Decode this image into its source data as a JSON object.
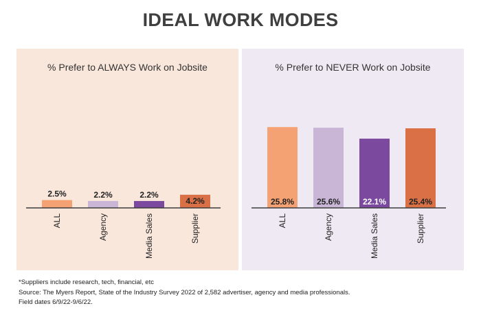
{
  "title": "IDEAL WORK MODES",
  "chart_data": [
    {
      "type": "bar",
      "title": "% Prefer to ALWAYS Work on Jobsite",
      "categories": [
        "ALL",
        "Agency",
        "Media Sales",
        "Supplier"
      ],
      "values": [
        2.5,
        2.2,
        2.2,
        4.2
      ],
      "value_labels": [
        "2.5%",
        "2.2%",
        "2.2%",
        "4.2%"
      ],
      "label_position": "above-except-last-inside",
      "ylim": [
        0,
        30
      ],
      "background": "#f9e7dc",
      "colors": [
        "#f4a273",
        "#c9b6d6",
        "#7b4a9e",
        "#d97046"
      ],
      "label_colors": [
        "#222222",
        "#222222",
        "#222222",
        "#222222"
      ],
      "xlabel": "",
      "ylabel": ""
    },
    {
      "type": "bar",
      "title": "% Prefer to NEVER Work on Jobsite",
      "categories": [
        "ALL",
        "Agency",
        "Media Sales",
        "Supplier"
      ],
      "values": [
        25.8,
        25.6,
        22.1,
        25.4
      ],
      "value_labels": [
        "25.8%",
        "25.6%",
        "22.1%",
        "25.4%"
      ],
      "label_position": "inside-bottom",
      "ylim": [
        0,
        30
      ],
      "background": "#efe9f3",
      "colors": [
        "#f4a273",
        "#c9b6d6",
        "#7b4a9e",
        "#d97046"
      ],
      "label_colors": [
        "#222222",
        "#222222",
        "#ffffff",
        "#222222"
      ],
      "xlabel": "",
      "ylabel": ""
    }
  ],
  "footer": {
    "note": "*Suppliers include research,  tech, financial, etc",
    "source": "Source:  The Myers Report, State of the Industry Survey 2022 of 2,582 advertiser, agency and media professionals.",
    "dates": "Field dates 6/9/22-9/6/22."
  }
}
